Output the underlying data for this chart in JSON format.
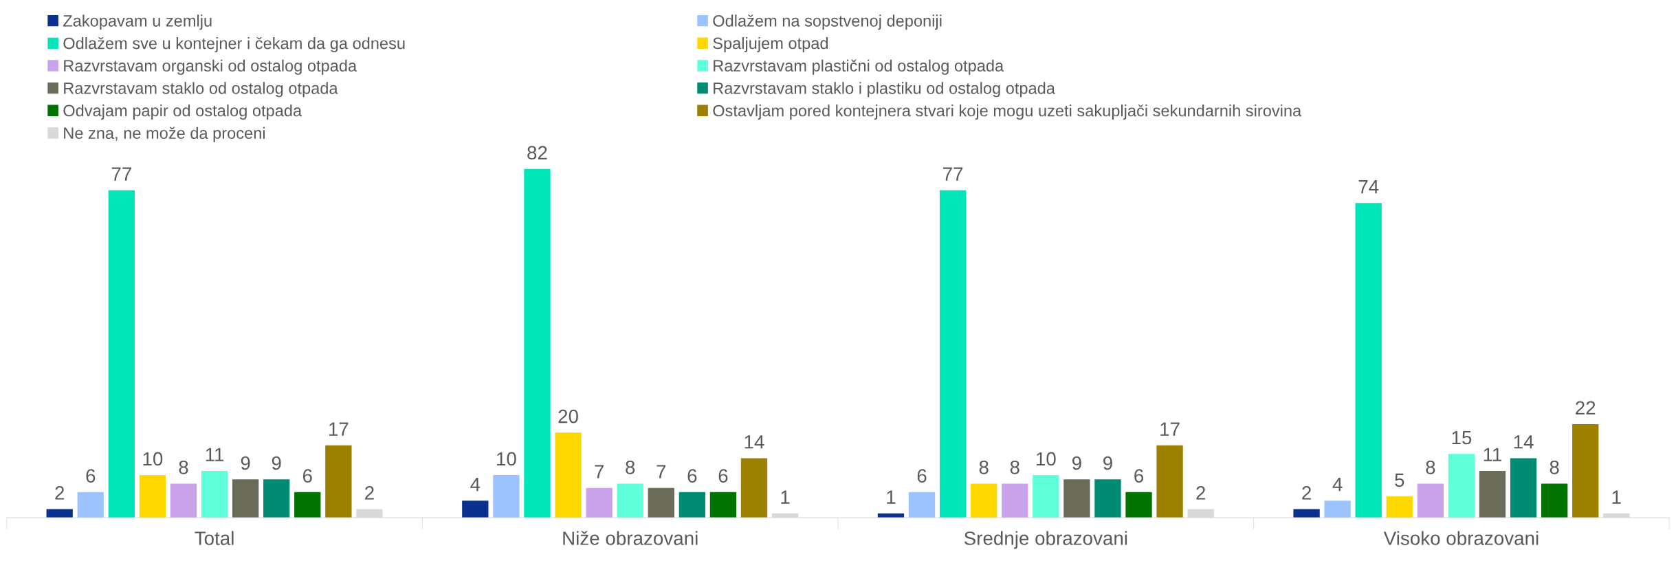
{
  "chart_data": {
    "type": "bar",
    "categories": [
      "Total",
      "Niže obrazovani",
      "Srednje obrazovani",
      "Visoko obrazovani"
    ],
    "series": [
      {
        "name": "Zakopavam u zemlju",
        "color": "#0b318f",
        "values": [
          2,
          4,
          1,
          2
        ]
      },
      {
        "name": "Odlažem na sopstvenoj deponiji",
        "color": "#9dc3ff",
        "values": [
          6,
          10,
          6,
          4
        ]
      },
      {
        "name": "Odlažem sve u kontejner i čekam da ga odnesu",
        "color": "#00e6b8",
        "values": [
          77,
          82,
          77,
          74
        ]
      },
      {
        "name": "Spaljujem otpad",
        "color": "#ffd800",
        "values": [
          10,
          20,
          8,
          5
        ]
      },
      {
        "name": "Razvrstavam organski od ostalog otpada",
        "color": "#cba3eb",
        "values": [
          8,
          7,
          8,
          8
        ]
      },
      {
        "name": "Razvrstavam plastični od ostalog otpada",
        "color": "#5effd9",
        "values": [
          11,
          8,
          10,
          15
        ]
      },
      {
        "name": "Razvrstavam staklo od ostalog otpada",
        "color": "#6b6b5a",
        "values": [
          9,
          7,
          9,
          11
        ]
      },
      {
        "name": "Razvrstavam staklo i plastiku od ostalog otpada",
        "color": "#008c73",
        "values": [
          9,
          6,
          9,
          14
        ]
      },
      {
        "name": "Odvajam papir od ostalog otpada",
        "color": "#007300",
        "values": [
          6,
          6,
          6,
          8
        ]
      },
      {
        "name": "Ostavljam pored kontejnera stvari koje mogu uzeti sakupljači sekundarnih sirovina",
        "color": "#9c8000",
        "values": [
          17,
          14,
          17,
          22
        ]
      },
      {
        "name": "Ne zna, ne može da proceni",
        "color": "#d9d9d9",
        "values": [
          2,
          1,
          2,
          1
        ]
      }
    ],
    "data_labels": true,
    "legend": "top",
    "grid": false
  }
}
